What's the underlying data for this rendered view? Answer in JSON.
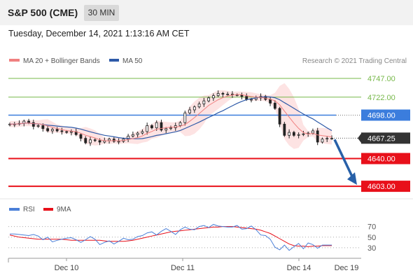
{
  "header": {
    "title": "S&P 500 (CME)",
    "interval": "30 MIN"
  },
  "datetime": "Tuesday, December 14, 2021 1:13:16 AM CET",
  "legend": {
    "ma20": "MA 20 + Bollinger Bands",
    "ma50": "MA 50",
    "credit": "Research © 2021 Trading Central",
    "rsi": "RSI",
    "ma9": "9MA"
  },
  "colors": {
    "ma20": "#f08080",
    "ma50": "#2e5aa8",
    "bollinger": "#fde3e3",
    "resistance": "#77b84a",
    "support": "#e8101a",
    "pivot": "#3b7ddd",
    "last": "#333333",
    "arrow": "#2860a8",
    "rsi": "#4a7fd8"
  },
  "chart_data": [
    {
      "type": "candlestick",
      "ylim": [
        4590,
        4762
      ],
      "levels": [
        {
          "value": 4747.0,
          "label": "4747.00",
          "kind": "resistance"
        },
        {
          "value": 4722.0,
          "label": "4722.00",
          "kind": "resistance"
        },
        {
          "value": 4698.0,
          "label": "4698.00",
          "kind": "pivot"
        },
        {
          "value": 4667.25,
          "label": "4667.25",
          "kind": "last"
        },
        {
          "value": 4640.0,
          "label": "4640.00",
          "kind": "support"
        },
        {
          "value": 4603.0,
          "label": "4603.00",
          "kind": "support"
        }
      ],
      "x_ticks": [
        "Dec 10",
        "Dec 11",
        "Dec 14",
        "Dec 19"
      ],
      "series": [
        {
          "name": "MA 20 + Bollinger Bands"
        },
        {
          "name": "MA 50"
        }
      ],
      "closes": [
        4686,
        4686,
        4687,
        4690,
        4688,
        4683,
        4684,
        4680,
        4677,
        4679,
        4677,
        4676,
        4675,
        4676,
        4672,
        4667,
        4661,
        4665,
        4664,
        4662,
        4664,
        4666,
        4663,
        4663,
        4666,
        4670,
        4672,
        4674,
        4676,
        4684,
        4681,
        4688,
        4678,
        4680,
        4681,
        4684,
        4688,
        4701,
        4705,
        4709,
        4713,
        4717,
        4721,
        4724,
        4727,
        4726,
        4726,
        4725,
        4725,
        4723,
        4719,
        4719,
        4721,
        4723,
        4719,
        4714,
        4707,
        4686,
        4671,
        4675,
        4671,
        4672,
        4673,
        4674,
        4677,
        4662,
        4666,
        4667,
        4667
      ]
    },
    {
      "type": "line",
      "ylim": [
        14,
        88
      ],
      "ticks": [
        70,
        50,
        30
      ],
      "series": [
        {
          "name": "RSI",
          "values": [
            56,
            56,
            55,
            54,
            53,
            55,
            52,
            45,
            50,
            41,
            44,
            46,
            48,
            49,
            45,
            40,
            45,
            51,
            46,
            36,
            40,
            43,
            37,
            42,
            48,
            45,
            46,
            51,
            53,
            58,
            60,
            54,
            61,
            66,
            61,
            55,
            64,
            69,
            65,
            64,
            70,
            72,
            68,
            74,
            71,
            70,
            69,
            69,
            72,
            65,
            66,
            71,
            64,
            54,
            53,
            46,
            31,
            26,
            35,
            25,
            32,
            38,
            28,
            39,
            36,
            29,
            35,
            35,
            35
          ]
        },
        {
          "name": "9MA",
          "values": [
            54,
            52,
            50,
            49,
            48,
            47,
            46,
            46,
            46,
            46,
            46,
            46,
            45,
            44,
            44,
            44,
            44,
            44,
            44,
            44,
            43,
            42,
            42,
            42,
            42,
            43,
            44,
            46,
            48,
            50,
            52,
            54,
            56,
            58,
            60,
            61,
            62,
            63,
            64,
            65,
            66,
            67,
            68,
            69,
            69,
            70,
            70,
            70,
            69,
            68,
            67,
            66,
            65,
            63,
            60,
            57,
            52,
            47,
            42,
            37,
            34,
            33,
            33,
            32,
            33,
            33,
            34,
            34,
            34
          ]
        }
      ]
    }
  ]
}
